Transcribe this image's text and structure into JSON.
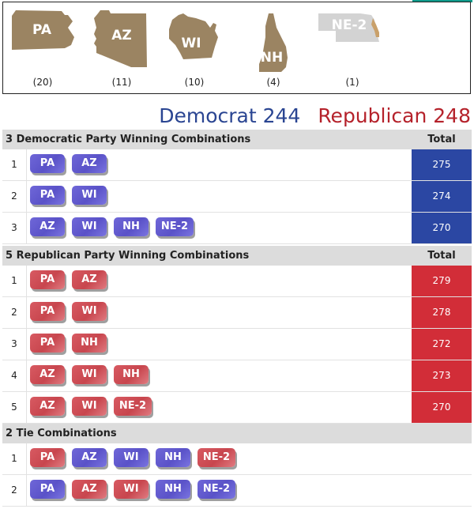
{
  "colors": {
    "democrat": "#2a4592",
    "republican": "#b5222b",
    "state_fill": "#9b8462",
    "state_fill_gray": "#d3d3d3"
  },
  "states": [
    {
      "abbr": "PA",
      "ev": "(20)",
      "icon": "pennsylvania-shape"
    },
    {
      "abbr": "AZ",
      "ev": "(11)",
      "icon": "arizona-shape"
    },
    {
      "abbr": "WI",
      "ev": "(10)",
      "icon": "wisconsin-shape"
    },
    {
      "abbr": "NH",
      "ev": "(4)",
      "icon": "new-hampshire-shape"
    },
    {
      "abbr": "NE-2",
      "ev": "(1)",
      "icon": "nebraska-shape"
    }
  ],
  "totals": {
    "democrat": "Democrat 244",
    "republican": "Republican 248"
  },
  "democratic": {
    "title": "3 Democratic Party Winning Combinations",
    "total_label": "Total",
    "rows": [
      {
        "num": "1",
        "states": [
          "PA",
          "AZ"
        ],
        "total": "275"
      },
      {
        "num": "2",
        "states": [
          "PA",
          "WI"
        ],
        "total": "274"
      },
      {
        "num": "3",
        "states": [
          "AZ",
          "WI",
          "NH",
          "NE-2"
        ],
        "total": "270"
      }
    ]
  },
  "republican": {
    "title": "5 Republican Party Winning Combinations",
    "total_label": "Total",
    "rows": [
      {
        "num": "1",
        "states": [
          "PA",
          "AZ"
        ],
        "total": "279"
      },
      {
        "num": "2",
        "states": [
          "PA",
          "WI"
        ],
        "total": "278"
      },
      {
        "num": "3",
        "states": [
          "PA",
          "NH"
        ],
        "total": "272"
      },
      {
        "num": "4",
        "states": [
          "AZ",
          "WI",
          "NH"
        ],
        "total": "273"
      },
      {
        "num": "5",
        "states": [
          "AZ",
          "WI",
          "NE-2"
        ],
        "total": "270"
      }
    ]
  },
  "tie": {
    "title": "2 Tie Combinations",
    "rows": [
      {
        "num": "1",
        "states": [
          "PA",
          "AZ",
          "WI",
          "NH",
          "NE-2"
        ],
        "parties": [
          "rep",
          "dem",
          "dem",
          "dem",
          "rep"
        ]
      },
      {
        "num": "2",
        "states": [
          "PA",
          "AZ",
          "WI",
          "NH",
          "NE-2"
        ],
        "parties": [
          "dem",
          "rep",
          "rep",
          "dem",
          "dem"
        ]
      }
    ]
  }
}
